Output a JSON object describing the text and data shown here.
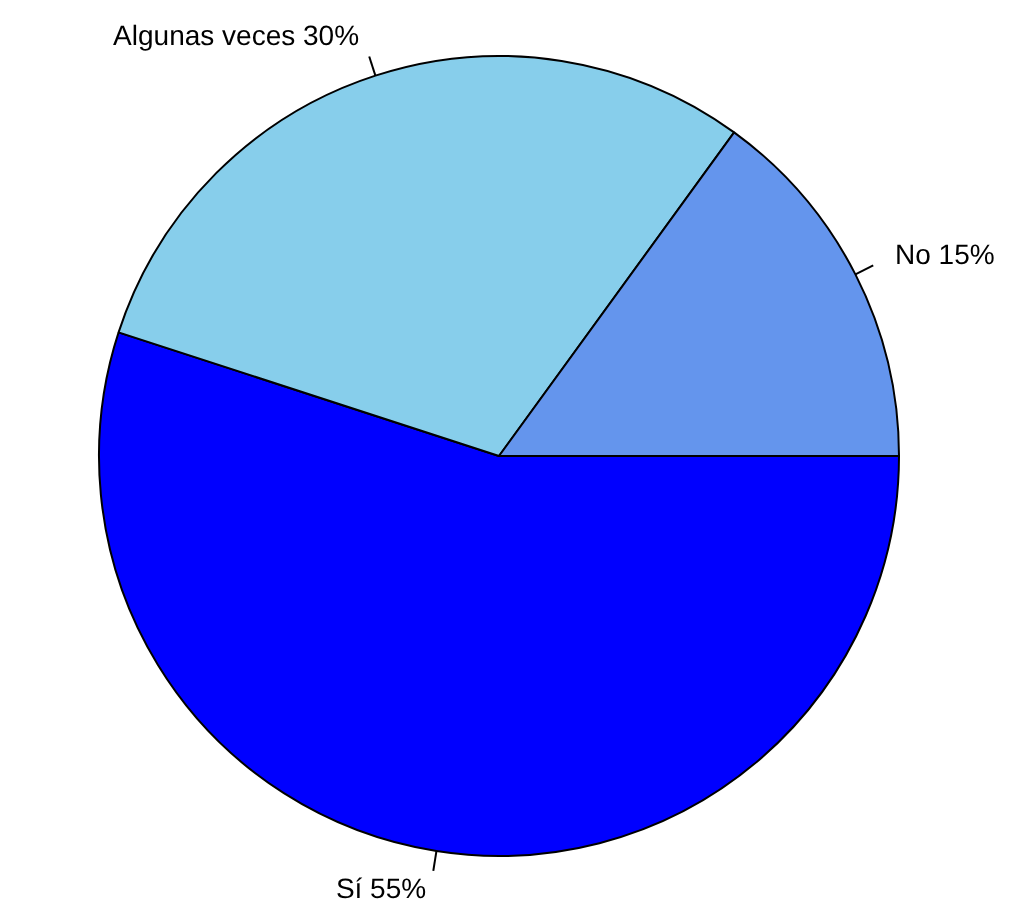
{
  "chart_data": {
    "type": "pie",
    "categories": [
      "No",
      "Algunas veces",
      "Sí"
    ],
    "values": [
      15,
      30,
      55
    ],
    "value_labels": [
      "15%",
      "30%",
      "55%"
    ],
    "colors": [
      "#6495ed",
      "#87ceeb",
      "#0000ff"
    ]
  }
}
